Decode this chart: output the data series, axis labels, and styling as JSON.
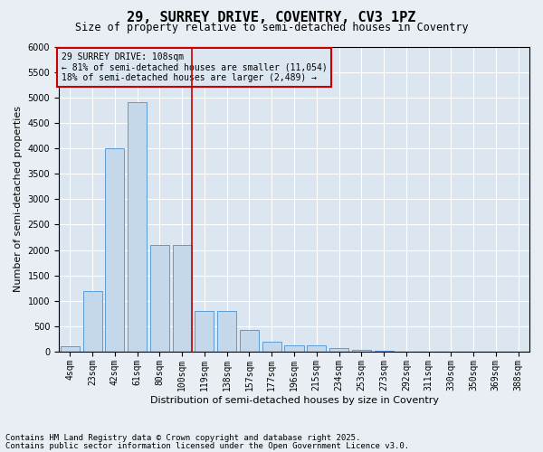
{
  "title1": "29, SURREY DRIVE, COVENTRY, CV3 1PZ",
  "title2": "Size of property relative to semi-detached houses in Coventry",
  "xlabel": "Distribution of semi-detached houses by size in Coventry",
  "ylabel": "Number of semi-detached properties",
  "categories": [
    "4sqm",
    "23sqm",
    "42sqm",
    "61sqm",
    "80sqm",
    "100sqm",
    "119sqm",
    "138sqm",
    "157sqm",
    "177sqm",
    "196sqm",
    "215sqm",
    "234sqm",
    "253sqm",
    "273sqm",
    "292sqm",
    "311sqm",
    "330sqm",
    "350sqm",
    "369sqm",
    "388sqm"
  ],
  "values": [
    100,
    1200,
    4000,
    4900,
    2100,
    2100,
    800,
    800,
    420,
    200,
    130,
    130,
    80,
    30,
    10,
    5,
    2,
    1,
    0,
    0,
    0
  ],
  "bar_color": "#c5d8ea",
  "bar_edge_color": "#5b9bd5",
  "vline_x": 5.42,
  "vline_color": "#cc0000",
  "ylim": [
    0,
    6000
  ],
  "yticks": [
    0,
    500,
    1000,
    1500,
    2000,
    2500,
    3000,
    3500,
    4000,
    4500,
    5000,
    5500,
    6000
  ],
  "annotation_title": "29 SURREY DRIVE: 108sqm",
  "annotation_line1": "← 81% of semi-detached houses are smaller (11,054)",
  "annotation_line2": "18% of semi-detached houses are larger (2,489) →",
  "annotation_box_color": "#cc0000",
  "footer1": "Contains HM Land Registry data © Crown copyright and database right 2025.",
  "footer2": "Contains public sector information licensed under the Open Government Licence v3.0.",
  "bg_color": "#e8eef4",
  "plot_bg_color": "#dce6f0",
  "title1_fontsize": 11,
  "title2_fontsize": 8.5,
  "axis_label_fontsize": 8,
  "tick_fontsize": 7,
  "annotation_fontsize": 7,
  "footer_fontsize": 6.5
}
